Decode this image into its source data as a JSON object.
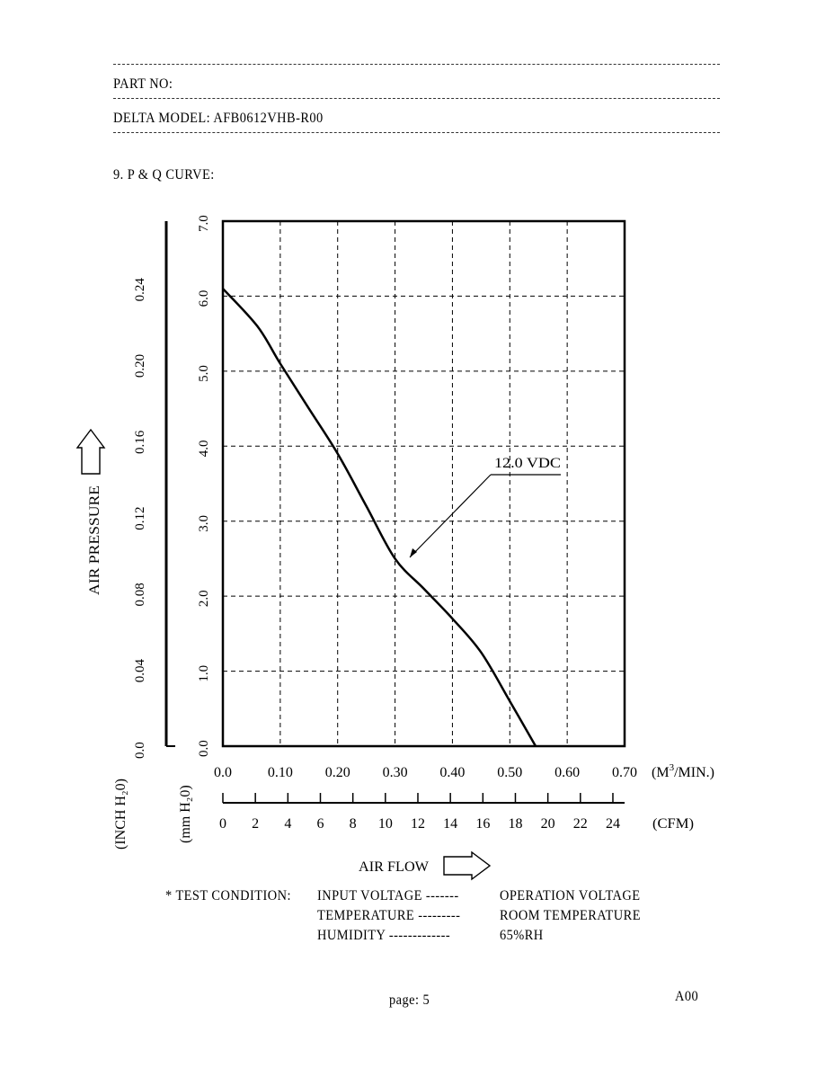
{
  "header": {
    "part_no_label": "PART NO:",
    "model_label": "DELTA MODEL: AFB0612VHB-R00"
  },
  "section_title": "9. P & Q CURVE:",
  "chart_data": {
    "type": "line",
    "title": "",
    "xlabel": "AIR FLOW",
    "ylabel": "AIR PRESSURE",
    "x_unit_primary": "(M³/MIN.)",
    "x_unit_primary_base": "(M",
    "x_unit_primary_sup": "3",
    "x_unit_primary_tail": "/MIN.)",
    "x_unit_secondary": "(CFM)",
    "y_unit_primary": "(mm H₂0)",
    "y_unit_secondary": "(INCH H₂0)",
    "xlim": [
      0,
      0.7
    ],
    "ylim": [
      0,
      7
    ],
    "x_ticks": [
      "0.0",
      "0.10",
      "0.20",
      "0.30",
      "0.40",
      "0.50",
      "0.60",
      "0.70"
    ],
    "cfm_ticks": [
      "0",
      "2",
      "4",
      "6",
      "8",
      "10",
      "12",
      "14",
      "16",
      "18",
      "20",
      "22",
      "24"
    ],
    "y_ticks_mm": [
      "0.0",
      "1.0",
      "2.0",
      "3.0",
      "4.0",
      "5.0",
      "6.0",
      "7.0"
    ],
    "y_ticks_inch": [
      "0.0",
      "0.04",
      "0.08",
      "0.12",
      "0.16",
      "0.20",
      "0.24"
    ],
    "grid": true,
    "legend": "annotation",
    "series": [
      {
        "name": "12.0 VDC",
        "x": [
          0.0,
          0.06,
          0.1,
          0.15,
          0.2,
          0.25,
          0.3,
          0.35,
          0.4,
          0.45,
          0.5,
          0.545
        ],
        "y": [
          6.1,
          5.6,
          5.1,
          4.5,
          3.9,
          3.2,
          2.5,
          2.1,
          1.7,
          1.25,
          0.6,
          0.0
        ]
      }
    ]
  },
  "test_condition": {
    "prefix": "* TEST CONDITION:",
    "rows": [
      {
        "label": "INPUT VOLTAGE -------",
        "value": "OPERATION VOLTAGE"
      },
      {
        "label": "TEMPERATURE ---------",
        "value": "ROOM TEMPERATURE"
      },
      {
        "label": "HUMIDITY -------------",
        "value": "65%RH"
      }
    ]
  },
  "footer": {
    "page": "page: 5",
    "revision": "A00"
  }
}
